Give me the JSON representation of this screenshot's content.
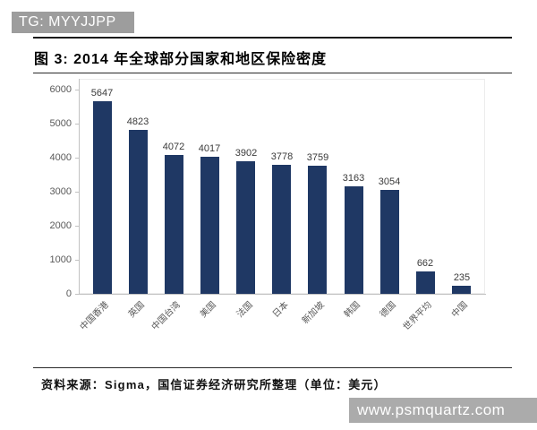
{
  "banner": {
    "text": "TG: MYYJJPP"
  },
  "header": {
    "figure_label": "图 3:",
    "title": "2014 年全球部分国家和地区保险密度"
  },
  "footer": {
    "source": "资料来源：Sigma，国信证券经济研究所整理（单位：美元）"
  },
  "watermark": {
    "text": "www.psmquartz.com"
  },
  "chart_data": {
    "type": "bar",
    "title": "2014 年全球部分国家和地区保险密度",
    "categories": [
      "中国香港",
      "英国",
      "中国台湾",
      "美国",
      "法国",
      "日本",
      "新加坡",
      "韩国",
      "德国",
      "世界平均",
      "中国"
    ],
    "values": [
      5647,
      4823,
      4072,
      4017,
      3902,
      3778,
      3759,
      3163,
      3054,
      662,
      235
    ],
    "xlabel": "",
    "ylabel": "",
    "ylim": [
      0,
      6000
    ],
    "yticks": [
      0,
      1000,
      2000,
      3000,
      4000,
      5000,
      6000
    ],
    "grid": false,
    "legend_position": "none",
    "value_labels": true,
    "bar_color": "#1f3864",
    "unit": "美元"
  }
}
